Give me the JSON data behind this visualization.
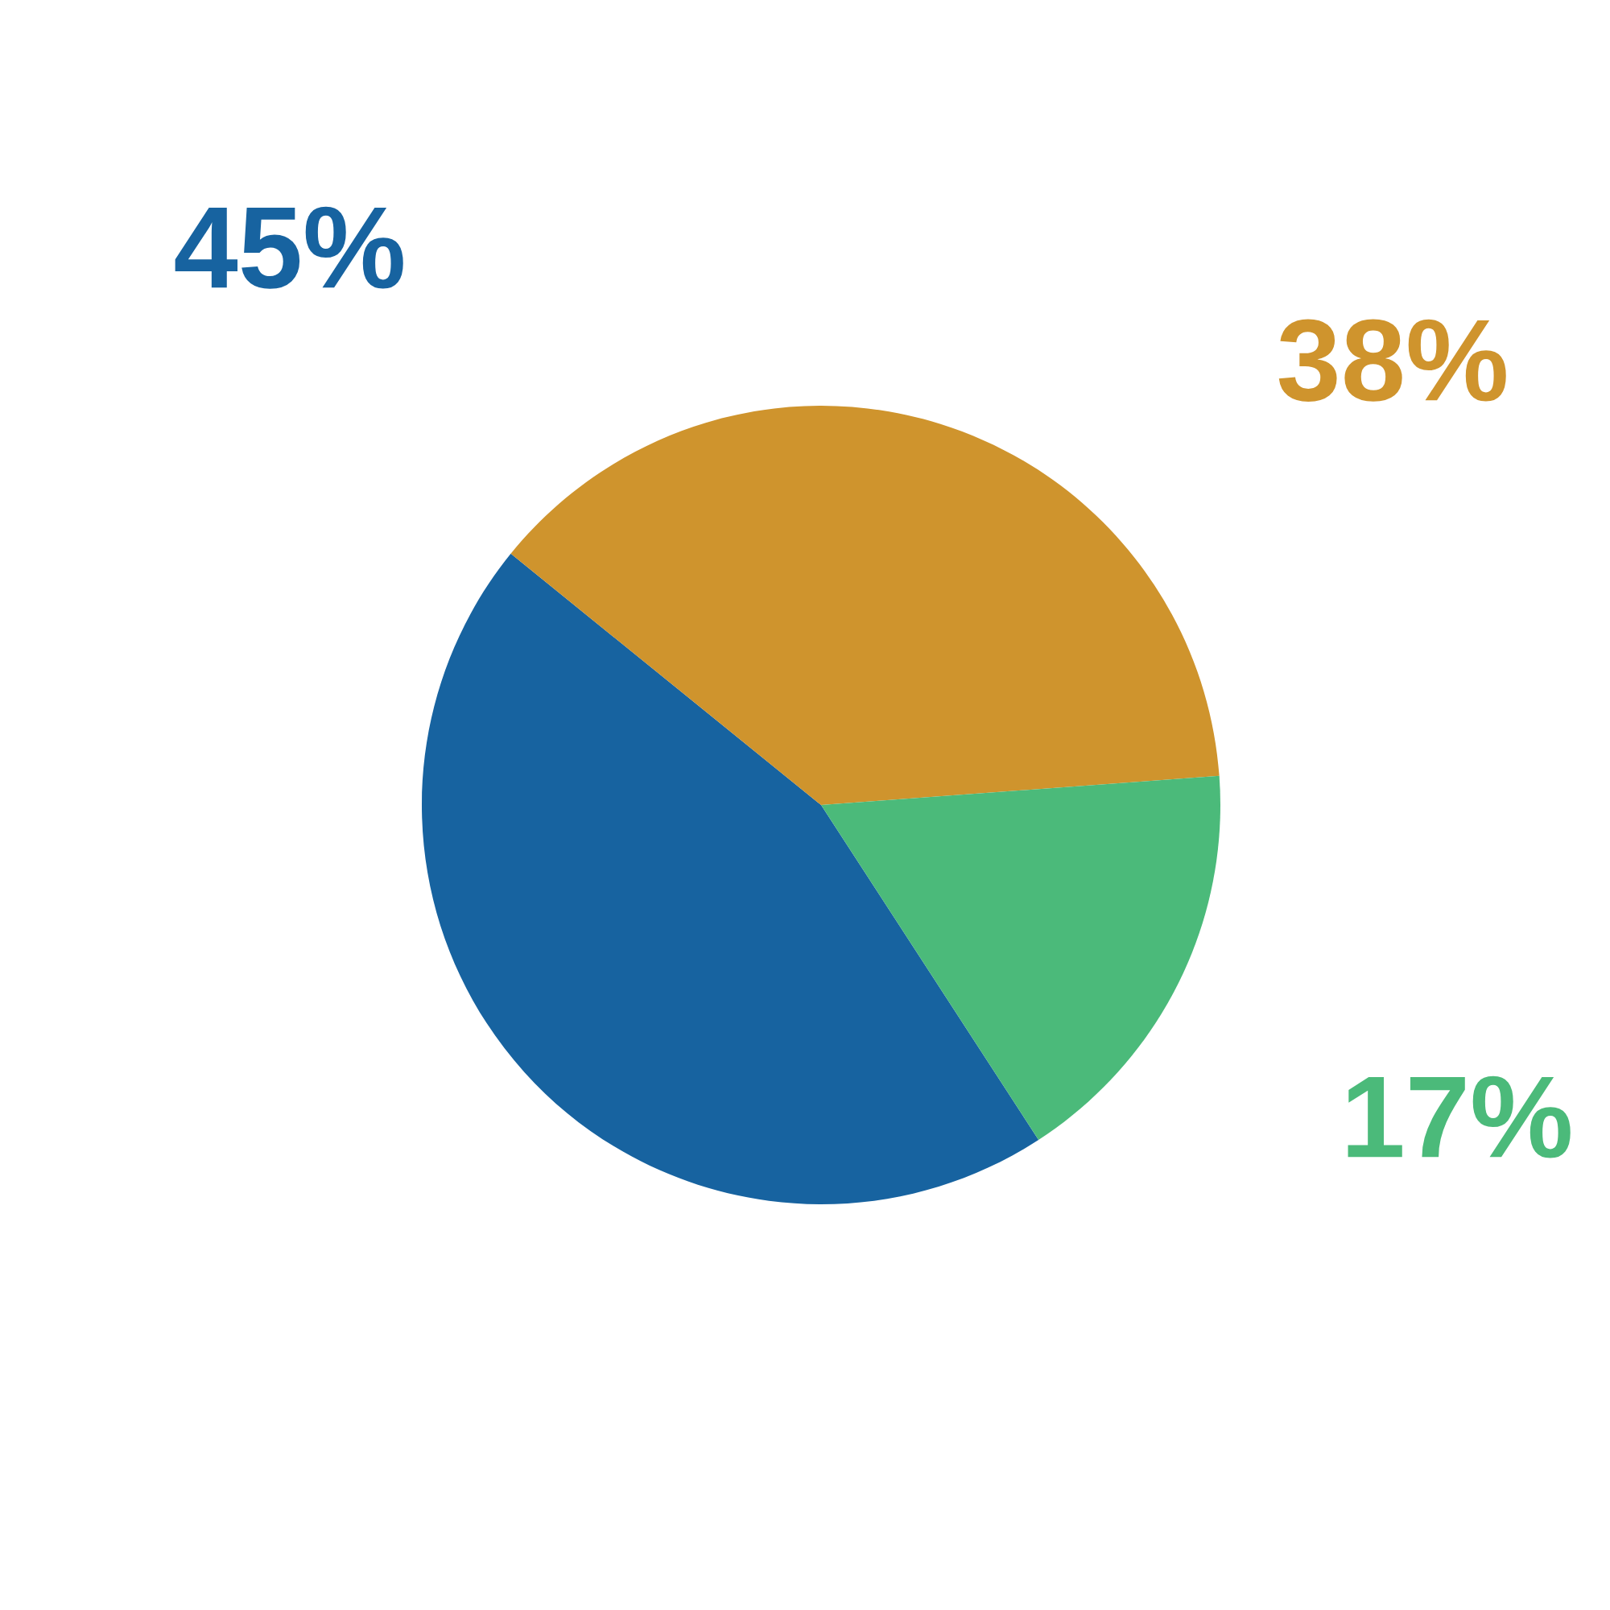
{
  "chart_data": {
    "type": "pie",
    "categories": [
      null,
      null,
      null
    ],
    "values": [
      45,
      38,
      17
    ],
    "colors": [
      "#1763a0",
      "#cf942d",
      "#4bba7a"
    ],
    "value_labels": [
      "45%",
      "38%",
      "17%"
    ]
  }
}
